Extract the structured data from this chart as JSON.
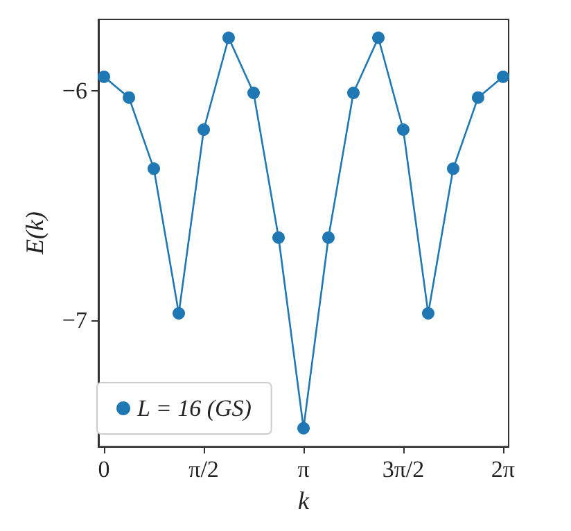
{
  "chart_data": {
    "type": "line",
    "xlabel": "k",
    "ylabel": "E(k)",
    "x": [
      0,
      0.393,
      0.785,
      1.178,
      1.571,
      1.963,
      2.356,
      2.749,
      3.142,
      3.534,
      3.927,
      4.32,
      4.712,
      5.105,
      5.498,
      5.89,
      6.283
    ],
    "series": [
      {
        "name": "L = 16 (GS)",
        "color": "#1f77b4",
        "values": [
          -5.94,
          -6.03,
          -6.34,
          -6.97,
          -6.17,
          -5.77,
          -6.01,
          -6.64,
          -7.47,
          -6.64,
          -6.01,
          -5.77,
          -6.17,
          -6.97,
          -6.34,
          -6.03,
          -5.94
        ]
      }
    ],
    "xlim": [
      -0.088,
      6.371
    ],
    "xticks": [
      {
        "value": 0,
        "label": "0"
      },
      {
        "value": 1.571,
        "label": "π/2"
      },
      {
        "value": 3.142,
        "label": "π"
      },
      {
        "value": 4.712,
        "label": "3π/2"
      },
      {
        "value": 6.283,
        "label": "2π"
      }
    ],
    "ylim": [
      -7.55,
      -5.69
    ],
    "yticks": [
      {
        "value": -7,
        "label": "−7"
      },
      {
        "value": -6,
        "label": "−6"
      }
    ],
    "grid": false,
    "legend": "bottom left",
    "marker": "circle",
    "line_style": "solid"
  }
}
